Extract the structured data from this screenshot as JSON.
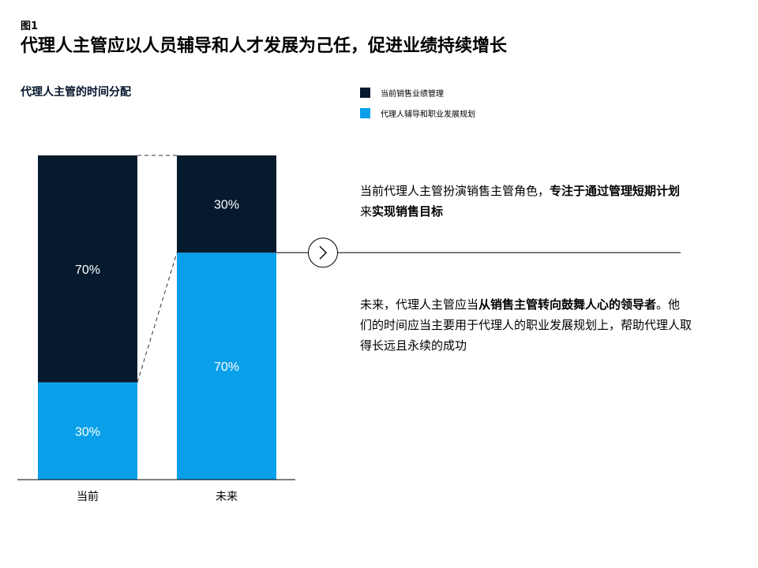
{
  "header": {
    "figure_label": "图1",
    "title": "代理人主管应以人员辅导和人才发展为己任，促进业绩持续增长"
  },
  "chart_data": {
    "type": "bar",
    "stacked": true,
    "title": "代理人主管的时间分配",
    "categories": [
      "当前",
      "未来"
    ],
    "series": [
      {
        "name": "代理人辅导和职业发展规划",
        "values": [
          30,
          70
        ],
        "color": "#0aa0e9"
      },
      {
        "name": "当前销售业绩管理",
        "values": [
          70,
          30
        ],
        "color": "#061a2e"
      }
    ],
    "data_labels": [
      [
        "30%",
        "70%"
      ],
      [
        "70%",
        "30%"
      ]
    ],
    "ylim": [
      0,
      100
    ],
    "grid": false,
    "legend_position": "top-right"
  },
  "legend": {
    "items": [
      {
        "label": "当前销售业绩管理",
        "color": "#061a2e"
      },
      {
        "label": "代理人辅导和职业发展规划",
        "color": "#0aa0e9"
      }
    ]
  },
  "notes": {
    "top": {
      "plain1": "当前代理人主管扮演销售主管角色，",
      "bold1": "专注于通过管理短期计划",
      "plain2": "来",
      "bold2": "实现销售目标"
    },
    "bottom": {
      "plain1": "未来，代理人主管应当",
      "bold1": "从销售主管转向鼓舞人心的领导者",
      "plain2": "。他们的时间应当主要用于代理人的职业发展规划上，帮助代理人取得长远且永续的成功"
    }
  },
  "colors": {
    "dark": "#061a2e",
    "blue": "#0aa0e9",
    "text": "#000000"
  },
  "icons": {
    "arrow": "chevron-right-circle-icon"
  }
}
